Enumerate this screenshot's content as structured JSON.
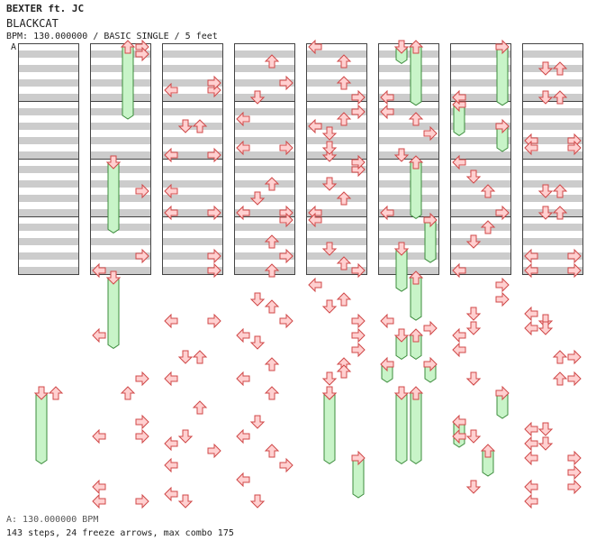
{
  "header": {
    "artist_line": "BEXTER ft. JC",
    "song_title": "BLACKCAT",
    "chart_info": "BPM: 130.000000 / BASIC SINGLE / 5 feet",
    "section_marker": "A"
  },
  "footer": {
    "bpm_line": "A: 130.000000 BPM",
    "stats_line": "143 steps, 24 freeze arrows, max combo 175"
  },
  "colors": {
    "arrow_fill": "#ffd0d0",
    "arrow_stroke": "#d04848",
    "freeze_fill": "#c8f4c8",
    "freeze_stroke": "#3c8c3c",
    "stripe": "#cccccc",
    "background": "#ffffff",
    "column_border": "#444444"
  },
  "chart_data": {
    "type": "step-chart",
    "columns": 8,
    "measures_per_column": 4,
    "lanes": [
      "left",
      "down",
      "up",
      "right"
    ],
    "arrows": [
      [
        1,
        0,
        0,
        3
      ],
      [
        1,
        0,
        1,
        3
      ],
      [
        2,
        0,
        6,
        0
      ],
      [
        2,
        0,
        6,
        3
      ],
      [
        2,
        0,
        5,
        3
      ],
      [
        3,
        0,
        7,
        1
      ],
      [
        3,
        0,
        5,
        3
      ],
      [
        3,
        0,
        2,
        2
      ],
      [
        4,
        0,
        0,
        0
      ],
      [
        4,
        0,
        2,
        2
      ],
      [
        4,
        0,
        5,
        2
      ],
      [
        4,
        0,
        7,
        3
      ],
      [
        5,
        0,
        7,
        0
      ],
      [
        6,
        0,
        7,
        0
      ],
      [
        7,
        0,
        3,
        1
      ],
      [
        7,
        0,
        3,
        2
      ],
      [
        7,
        0,
        7,
        1
      ],
      [
        7,
        0,
        7,
        2
      ],
      [
        2,
        1,
        3,
        1
      ],
      [
        2,
        1,
        3,
        2
      ],
      [
        2,
        1,
        7,
        0
      ],
      [
        2,
        1,
        7,
        3
      ],
      [
        3,
        1,
        2,
        0
      ],
      [
        3,
        1,
        6,
        0
      ],
      [
        3,
        1,
        6,
        3
      ],
      [
        4,
        1,
        3,
        0
      ],
      [
        4,
        1,
        1,
        3
      ],
      [
        4,
        1,
        2,
        2
      ],
      [
        4,
        1,
        4,
        1
      ],
      [
        4,
        1,
        7,
        1
      ],
      [
        4,
        1,
        6,
        1
      ],
      [
        5,
        1,
        1,
        0
      ],
      [
        5,
        1,
        2,
        2
      ],
      [
        5,
        1,
        4,
        3
      ],
      [
        5,
        1,
        7,
        1
      ],
      [
        7,
        1,
        5,
        0
      ],
      [
        7,
        1,
        5,
        3
      ],
      [
        7,
        1,
        6,
        0
      ],
      [
        7,
        1,
        6,
        3
      ],
      [
        1,
        2,
        4,
        3
      ],
      [
        2,
        2,
        4,
        0
      ],
      [
        2,
        2,
        7,
        0
      ],
      [
        2,
        2,
        7,
        3
      ],
      [
        3,
        2,
        7,
        0
      ],
      [
        3,
        2,
        5,
        1
      ],
      [
        3,
        2,
        3,
        2
      ],
      [
        3,
        2,
        7,
        3
      ],
      [
        4,
        2,
        7,
        0
      ],
      [
        4,
        2,
        3,
        1
      ],
      [
        4,
        2,
        1,
        3
      ],
      [
        4,
        2,
        5,
        2
      ],
      [
        4,
        2,
        0,
        3
      ],
      [
        5,
        2,
        7,
        0
      ],
      [
        6,
        2,
        0,
        0
      ],
      [
        6,
        2,
        2,
        1
      ],
      [
        6,
        2,
        4,
        2
      ],
      [
        6,
        2,
        7,
        3
      ],
      [
        7,
        2,
        4,
        1
      ],
      [
        7,
        2,
        4,
        2
      ],
      [
        7,
        2,
        7,
        1
      ],
      [
        7,
        2,
        7,
        2
      ],
      [
        1,
        3,
        7,
        0
      ],
      [
        1,
        3,
        5,
        3
      ],
      [
        2,
        3,
        5,
        3
      ],
      [
        2,
        3,
        7,
        3
      ],
      [
        3,
        3,
        0,
        3
      ],
      [
        3,
        3,
        3,
        2
      ],
      [
        3,
        3,
        5,
        3
      ],
      [
        3,
        3,
        7,
        2
      ],
      [
        4,
        3,
        4,
        1
      ],
      [
        4,
        3,
        0,
        0
      ],
      [
        4,
        3,
        6,
        2
      ],
      [
        4,
        3,
        7,
        3
      ],
      [
        6,
        3,
        7,
        0
      ],
      [
        6,
        3,
        3,
        1
      ],
      [
        6,
        3,
        1,
        2
      ],
      [
        7,
        3,
        5,
        0
      ],
      [
        7,
        3,
        7,
        0
      ],
      [
        7,
        3,
        5,
        3
      ],
      [
        7,
        3,
        7,
        3
      ],
      [
        4,
        4,
        1,
        0
      ],
      [
        2,
        4,
        6,
        0
      ],
      [
        2,
        4,
        6,
        3
      ],
      [
        3,
        4,
        3,
        1
      ],
      [
        3,
        4,
        4,
        2
      ],
      [
        3,
        4,
        6,
        3
      ],
      [
        4,
        4,
        4,
        1
      ],
      [
        4,
        4,
        3,
        2
      ],
      [
        4,
        4,
        6,
        3
      ],
      [
        5,
        4,
        6,
        0
      ],
      [
        5,
        4,
        7,
        3
      ],
      [
        6,
        4,
        1,
        3
      ],
      [
        6,
        4,
        3,
        3
      ],
      [
        6,
        4,
        5,
        1
      ],
      [
        6,
        4,
        7,
        1
      ],
      [
        7,
        4,
        5,
        0
      ],
      [
        7,
        4,
        6,
        1
      ],
      [
        7,
        4,
        7,
        0
      ],
      [
        7,
        4,
        7,
        1
      ],
      [
        1,
        5,
        6,
        3
      ],
      [
        1,
        5,
        0,
        0
      ],
      [
        2,
        5,
        6,
        0
      ],
      [
        2,
        5,
        3,
        1
      ],
      [
        2,
        5,
        3,
        2
      ],
      [
        3,
        5,
        0,
        0
      ],
      [
        3,
        5,
        6,
        0
      ],
      [
        3,
        5,
        1,
        1
      ],
      [
        3,
        5,
        4,
        2
      ],
      [
        4,
        5,
        4,
        2
      ],
      [
        4,
        5,
        5,
        2
      ],
      [
        4,
        5,
        6,
        1
      ],
      [
        4,
        5,
        0,
        3
      ],
      [
        4,
        5,
        2,
        3
      ],
      [
        6,
        5,
        0,
        0
      ],
      [
        6,
        5,
        2,
        0
      ],
      [
        6,
        5,
        6,
        1
      ],
      [
        6,
        5,
        6,
        1
      ],
      [
        7,
        5,
        3,
        2
      ],
      [
        7,
        5,
        3,
        3
      ],
      [
        7,
        5,
        6,
        3
      ],
      [
        7,
        5,
        6,
        2
      ],
      [
        0,
        6,
        0,
        2
      ],
      [
        1,
        6,
        0,
        2
      ],
      [
        1,
        6,
        4,
        3
      ],
      [
        1,
        6,
        6,
        0
      ],
      [
        1,
        6,
        6,
        3
      ],
      [
        2,
        6,
        2,
        2
      ],
      [
        2,
        6,
        7,
        0
      ],
      [
        2,
        6,
        6,
        1
      ],
      [
        3,
        6,
        6,
        0
      ],
      [
        3,
        6,
        0,
        2
      ],
      [
        3,
        6,
        4,
        1
      ],
      [
        4,
        6,
        0,
        1
      ],
      [
        6,
        6,
        6,
        1
      ],
      [
        6,
        6,
        6,
        0
      ],
      [
        7,
        6,
        5,
        0
      ],
      [
        7,
        6,
        5,
        1
      ],
      [
        7,
        6,
        7,
        0
      ],
      [
        7,
        6,
        7,
        1
      ],
      [
        1,
        7,
        5,
        0
      ],
      [
        1,
        7,
        7,
        0
      ],
      [
        1,
        7,
        7,
        3
      ],
      [
        2,
        7,
        2,
        0
      ],
      [
        2,
        7,
        6,
        0
      ],
      [
        2,
        7,
        7,
        1
      ],
      [
        2,
        7,
        0,
        3
      ],
      [
        3,
        7,
        0,
        2
      ],
      [
        3,
        7,
        2,
        3
      ],
      [
        3,
        7,
        4,
        0
      ],
      [
        3,
        7,
        7,
        1
      ],
      [
        6,
        7,
        5,
        1
      ],
      [
        7,
        7,
        1,
        0
      ],
      [
        7,
        7,
        1,
        3
      ],
      [
        7,
        7,
        5,
        0
      ],
      [
        7,
        7,
        5,
        3
      ],
      [
        7,
        7,
        7,
        0
      ],
      [
        7,
        7,
        3,
        3
      ]
    ],
    "freezes": [
      [
        1,
        0,
        0,
        2,
        9.5
      ],
      [
        5,
        0,
        0,
        1,
        1.8
      ],
      [
        5,
        0,
        0,
        2,
        7.6
      ],
      [
        6,
        0,
        0,
        3,
        7.6
      ],
      [
        6,
        1,
        0,
        0,
        3.8
      ],
      [
        6,
        1,
        3,
        3,
        3.0
      ],
      [
        1,
        2,
        0,
        1,
        9.3
      ],
      [
        5,
        2,
        0,
        2,
        7.3
      ],
      [
        5,
        3,
        0,
        3,
        5.4
      ],
      [
        5,
        3,
        4,
        1,
        5.4
      ],
      [
        5,
        4,
        0,
        2,
        5.4
      ],
      [
        1,
        4,
        0,
        1,
        9.3
      ],
      [
        5,
        5,
        0,
        1,
        2.8
      ],
      [
        5,
        5,
        0,
        2,
        2.8
      ],
      [
        5,
        5,
        4,
        0,
        2.0
      ],
      [
        5,
        5,
        4,
        3,
        2.0
      ],
      [
        6,
        6,
        0,
        3,
        3.0
      ],
      [
        6,
        6,
        4,
        0,
        3.0
      ],
      [
        0,
        6,
        0,
        1,
        9.3
      ],
      [
        4,
        6,
        0,
        1,
        9.3
      ],
      [
        5,
        6,
        0,
        1,
        9.3
      ],
      [
        5,
        6,
        0,
        2,
        9.3
      ],
      [
        4,
        7,
        1,
        3,
        5.0
      ],
      [
        6,
        7,
        0,
        2,
        3.0
      ]
    ]
  }
}
